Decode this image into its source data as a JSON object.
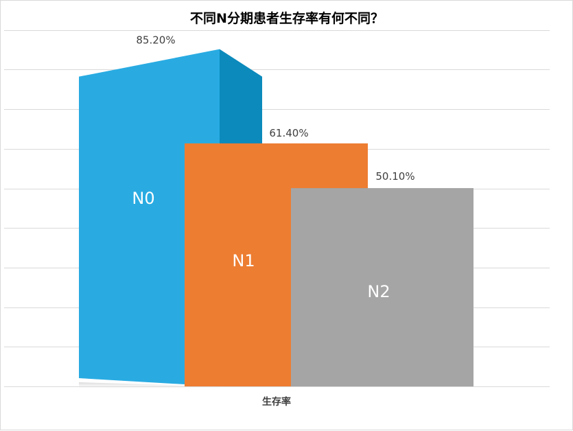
{
  "chart_data": {
    "type": "bar",
    "title": "不同N分期患者生存率有何不同？",
    "xlabel": "生存率",
    "ylabel": "",
    "ylim": [
      0,
      90
    ],
    "grid": true,
    "legend": "none",
    "categories": [
      "N0",
      "N1",
      "N2"
    ],
    "series": [
      {
        "values": [
          85.2,
          61.4,
          50.1
        ],
        "labels": [
          "85.20%",
          "61.40%",
          "50.10%"
        ],
        "colors": [
          "#29ABE2",
          "#ED7D31",
          "#A5A5A5"
        ]
      }
    ]
  }
}
